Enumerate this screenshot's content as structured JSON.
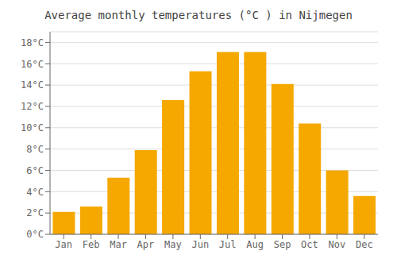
{
  "chart_data": {
    "type": "bar",
    "title": "Average monthly temperatures (°C ) in Nijmegen",
    "categories": [
      "Jan",
      "Feb",
      "Mar",
      "Apr",
      "May",
      "Jun",
      "Jul",
      "Aug",
      "Sep",
      "Oct",
      "Nov",
      "Dec"
    ],
    "values": [
      2.1,
      2.6,
      5.3,
      7.9,
      12.6,
      15.3,
      17.1,
      17.1,
      14.1,
      10.4,
      6.0,
      3.6
    ],
    "color": "#F5A800",
    "ylim": [
      0,
      19
    ],
    "yticks": [
      {
        "value": 0,
        "label": "0°C"
      },
      {
        "value": 2,
        "label": "2°C"
      },
      {
        "value": 4,
        "label": "4°C"
      },
      {
        "value": 6,
        "label": "6°C"
      },
      {
        "value": 8,
        "label": "8°C"
      },
      {
        "value": 10,
        "label": "10°C"
      },
      {
        "value": 12,
        "label": "12°C"
      },
      {
        "value": 14,
        "label": "14°C"
      },
      {
        "value": 16,
        "label": "16°C"
      },
      {
        "value": 18,
        "label": "18°C"
      }
    ],
    "grid": true
  }
}
